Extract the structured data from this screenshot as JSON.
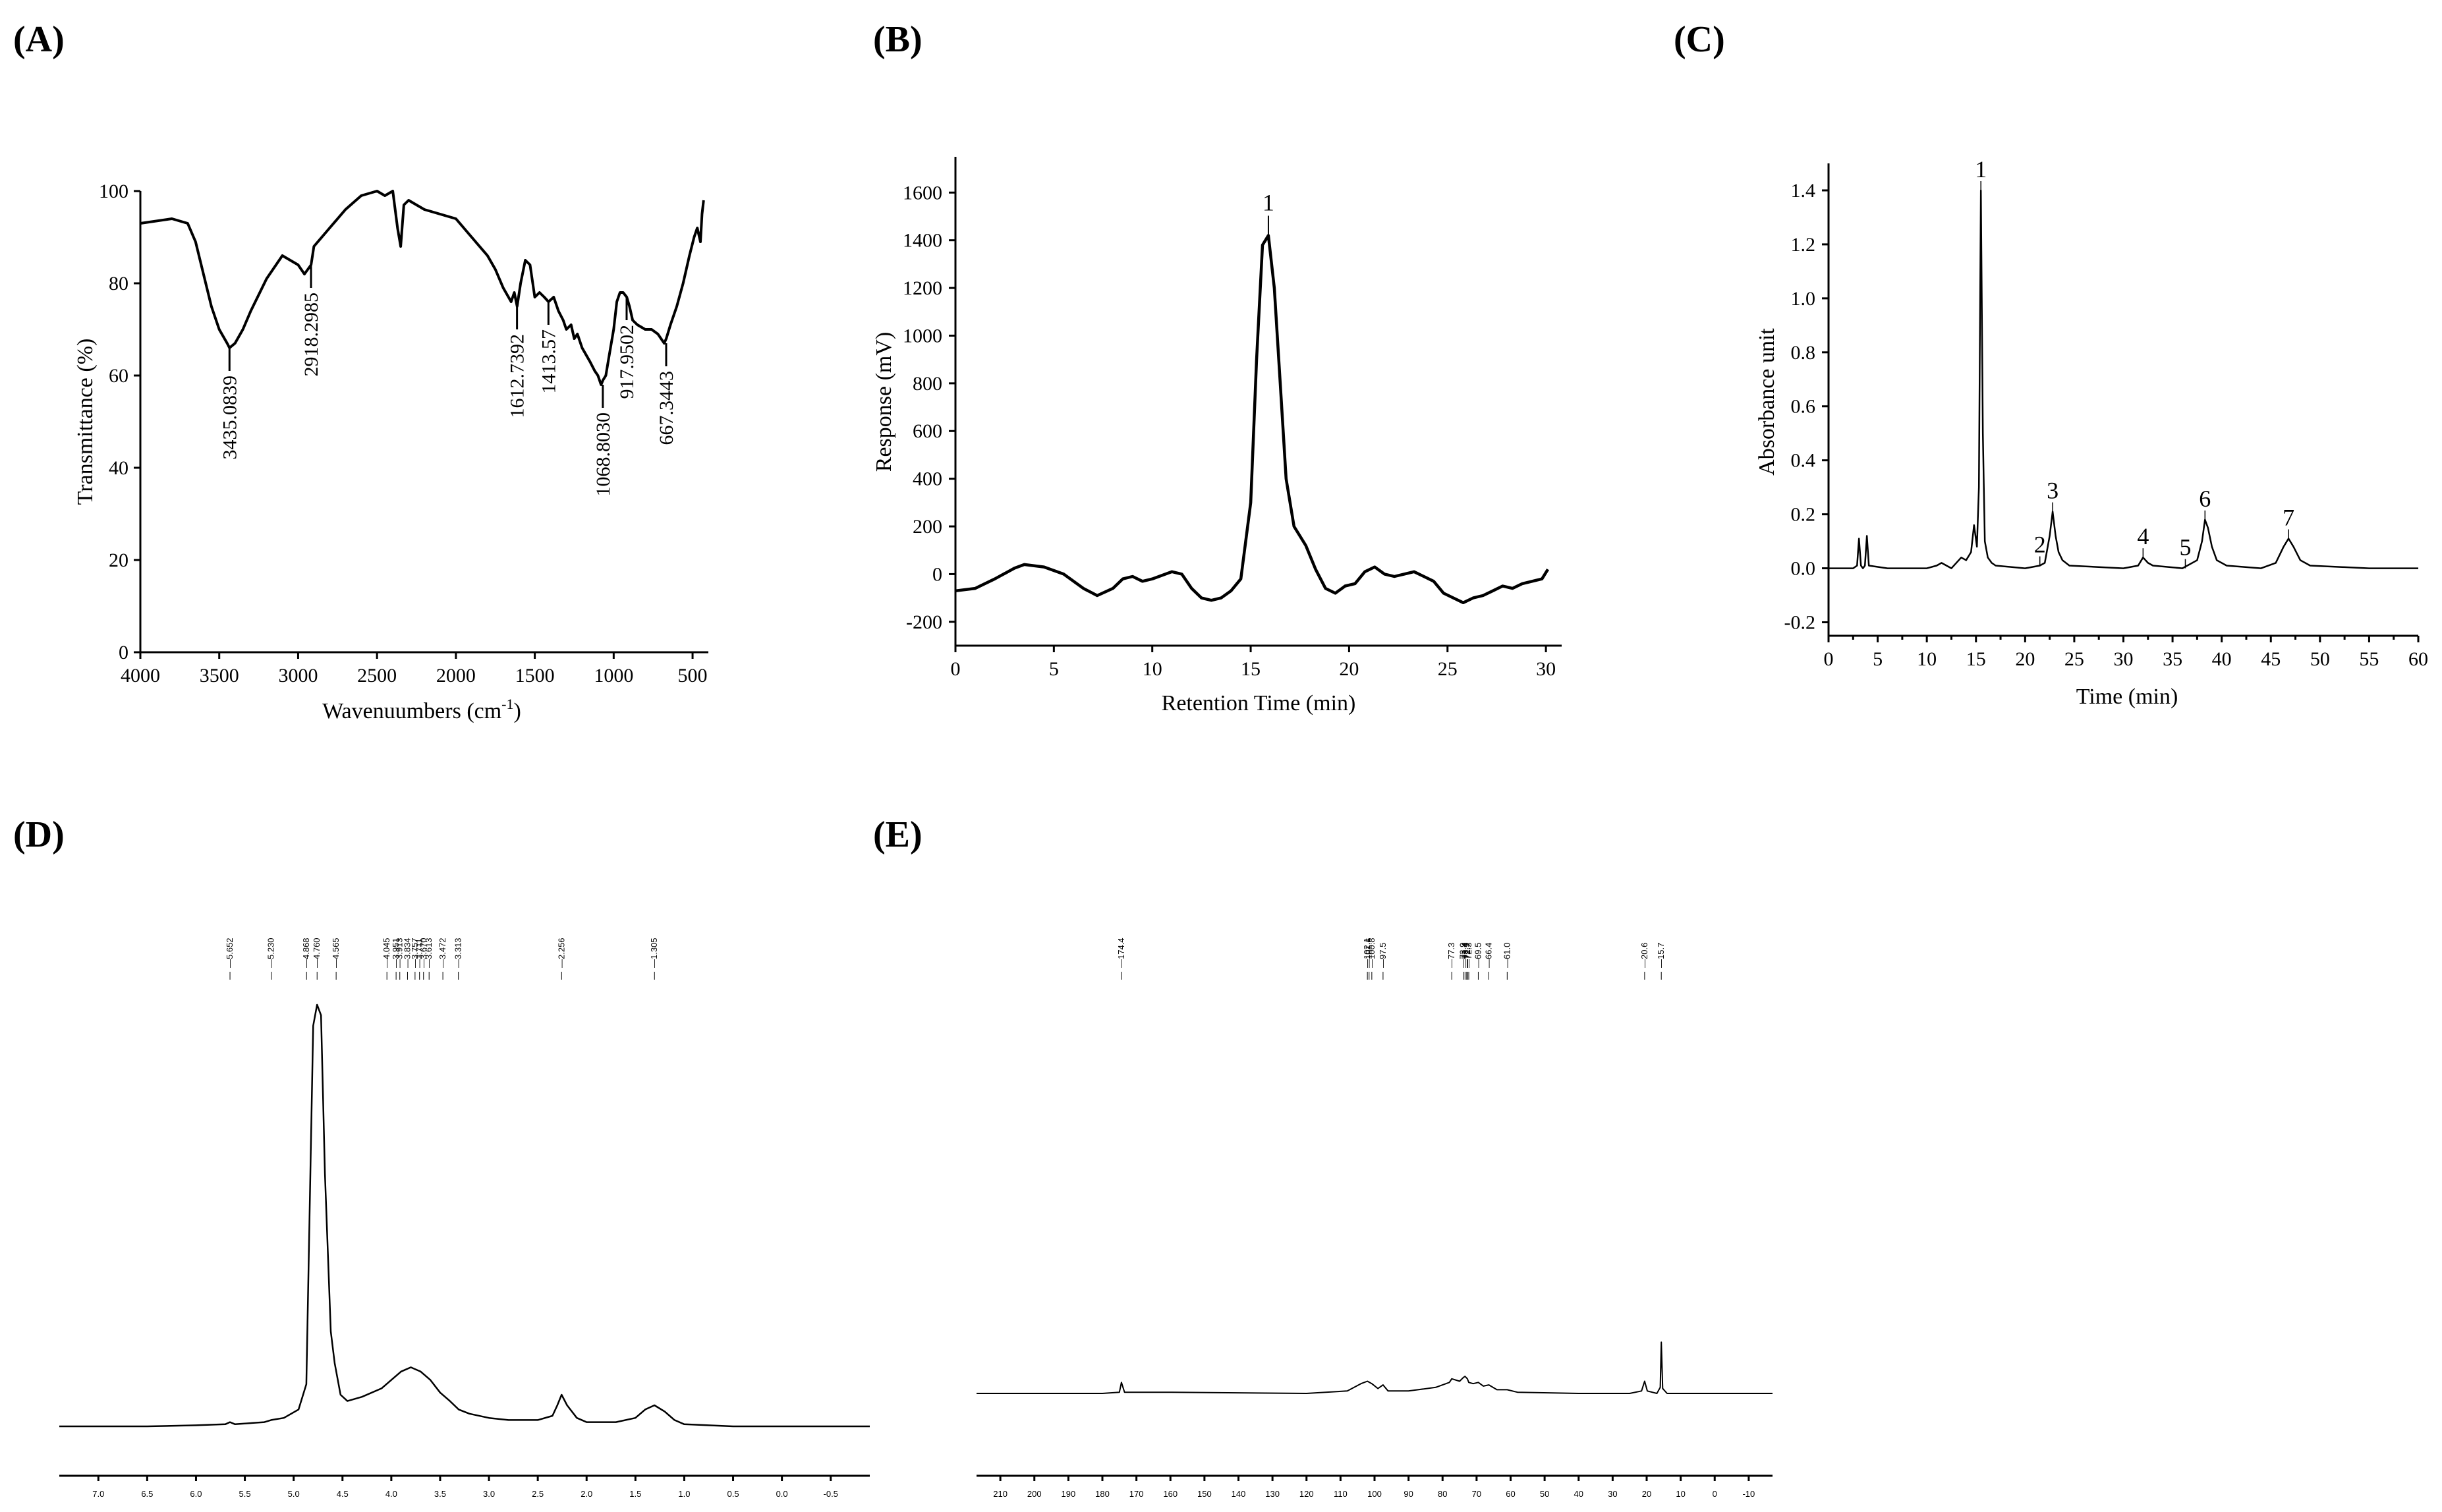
{
  "panels": {
    "A": {
      "label": "(A)"
    },
    "B": {
      "label": "(B)"
    },
    "C": {
      "label": "(C)"
    },
    "D": {
      "label": "(D)"
    },
    "E": {
      "label": "(E)"
    }
  },
  "chart_data": [
    {
      "id": "A",
      "type": "line",
      "xlabel": "Wavenuumbers (cm",
      "xlabel_sup": "-1",
      "xlabel_close": ")",
      "ylabel": "Transmittance (%)",
      "xlim": [
        4000,
        400
      ],
      "ylim": [
        0,
        100
      ],
      "xticks": [
        4000,
        3500,
        3000,
        2500,
        2000,
        1500,
        1000,
        500
      ],
      "yticks": [
        0,
        20,
        40,
        60,
        80,
        100
      ],
      "series": [
        {
          "x": [
            4000,
            3800,
            3700,
            3650,
            3600,
            3550,
            3500,
            3450,
            3435,
            3400,
            3350,
            3300,
            3200,
            3100,
            3000,
            2960,
            2918,
            2900,
            2800,
            2700,
            2600,
            2500,
            2450,
            2400,
            2370,
            2350,
            2330,
            2300,
            2200,
            2000,
            1900,
            1800,
            1750,
            1700,
            1650,
            1630,
            1612,
            1590,
            1560,
            1530,
            1500,
            1470,
            1440,
            1413,
            1380,
            1350,
            1320,
            1300,
            1270,
            1250,
            1230,
            1200,
            1150,
            1120,
            1100,
            1080,
            1068,
            1050,
            1030,
            1000,
            980,
            960,
            940,
            917,
            900,
            880,
            850,
            800,
            760,
            720,
            700,
            680,
            667,
            640,
            600,
            560,
            520,
            490,
            470,
            450,
            440,
            430
          ],
          "y": [
            93,
            94,
            93,
            89,
            82,
            75,
            70,
            67,
            66,
            67,
            70,
            74,
            81,
            86,
            84,
            82,
            84,
            88,
            92,
            96,
            99,
            100,
            99,
            100,
            92,
            88,
            97,
            98,
            96,
            94,
            90,
            86,
            83,
            79,
            76,
            78,
            75,
            80,
            85,
            84,
            77,
            78,
            77,
            76,
            77,
            74,
            72,
            70,
            71,
            68,
            69,
            66,
            63,
            61,
            60,
            58,
            59,
            60,
            64,
            70,
            76,
            78,
            78,
            77,
            75,
            72,
            71,
            70,
            70,
            69,
            68,
            67,
            68,
            71,
            75,
            80,
            86,
            90,
            92,
            89,
            95,
            98
          ]
        }
      ],
      "annotations": [
        {
          "x": 3435.0839,
          "y": 66,
          "text": "3435.0839"
        },
        {
          "x": 2918.2985,
          "y": 84,
          "text": "2918.2985"
        },
        {
          "x": 1612.7392,
          "y": 75,
          "text": "1612.7392"
        },
        {
          "x": 1413.57,
          "y": 76,
          "text": "1413.57"
        },
        {
          "x": 1068.803,
          "y": 58,
          "text": "1068.8030"
        },
        {
          "x": 917.9502,
          "y": 77,
          "text": "917.9502"
        },
        {
          "x": 667.3443,
          "y": 67,
          "text": "667.3443"
        }
      ]
    },
    {
      "id": "B",
      "type": "line",
      "xlabel": "Retention Time (min)",
      "ylabel": "Response (mV)",
      "xlim": [
        0,
        30.8
      ],
      "ylim": [
        -300,
        1750
      ],
      "xticks": [
        0,
        5,
        10,
        15,
        20,
        25,
        30
      ],
      "yticks": [
        -200,
        0,
        200,
        400,
        600,
        800,
        1000,
        1200,
        1400,
        1600
      ],
      "series": [
        {
          "x": [
            0,
            1,
            2,
            3,
            3.5,
            4.5,
            5.5,
            6.5,
            7.2,
            8,
            8.5,
            9,
            9.5,
            10,
            11,
            11.5,
            12,
            12.5,
            13,
            13.5,
            14,
            14.5,
            15,
            15.3,
            15.6,
            15.9,
            16.2,
            16.5,
            16.8,
            17.2,
            17.8,
            18.3,
            18.8,
            19.3,
            19.8,
            20.3,
            20.8,
            21.3,
            21.8,
            22.3,
            22.8,
            23.3,
            23.8,
            24.3,
            24.8,
            25.3,
            25.8,
            26.3,
            26.8,
            27.3,
            27.8,
            28.3,
            28.8,
            29.3,
            29.8,
            30.1
          ],
          "y": [
            -70,
            -60,
            -20,
            25,
            40,
            30,
            0,
            -60,
            -90,
            -60,
            -20,
            -10,
            -30,
            -20,
            10,
            0,
            -60,
            -100,
            -110,
            -100,
            -70,
            -20,
            300,
            900,
            1380,
            1420,
            1200,
            800,
            400,
            200,
            120,
            20,
            -60,
            -80,
            -50,
            -40,
            10,
            30,
            0,
            -10,
            0,
            10,
            -10,
            -30,
            -80,
            -100,
            -120,
            -100,
            -90,
            -70,
            -50,
            -60,
            -40,
            -30,
            -20,
            20
          ]
        }
      ],
      "annotations": [
        {
          "x": 15.9,
          "y": 1420,
          "text": "1"
        }
      ]
    },
    {
      "id": "C",
      "type": "line",
      "xlabel": "Time (min)",
      "ylabel": "Absorbance unit",
      "xlim": [
        0,
        60
      ],
      "ylim": [
        -0.25,
        1.5
      ],
      "xticks": [
        0,
        5,
        10,
        15,
        20,
        25,
        30,
        35,
        40,
        45,
        50,
        55,
        60
      ],
      "yticks": [
        -0.2,
        0.0,
        0.2,
        0.4,
        0.6,
        0.8,
        1.0,
        1.2,
        1.4
      ],
      "series": [
        {
          "x": [
            0,
            2.5,
            2.9,
            3.1,
            3.3,
            3.5,
            3.7,
            3.9,
            4.1,
            6,
            10,
            11,
            11.5,
            12,
            12.5,
            13,
            13.5,
            14,
            14.5,
            14.8,
            15.1,
            15.3,
            15.5,
            15.7,
            15.9,
            16.2,
            16.6,
            17,
            20,
            21.5,
            22,
            22.5,
            22.8,
            23.1,
            23.4,
            23.8,
            24.5,
            30,
            31.5,
            32,
            32.5,
            33,
            36,
            37.5,
            38,
            38.3,
            38.6,
            39,
            39.5,
            40.5,
            44,
            45.5,
            46.3,
            46.8,
            47.3,
            48,
            49,
            55,
            60
          ],
          "y": [
            0,
            0,
            0.01,
            0.11,
            0.01,
            0,
            0.01,
            0.12,
            0.01,
            0,
            0,
            0.01,
            0.02,
            0.01,
            0,
            0.02,
            0.04,
            0.03,
            0.06,
            0.16,
            0.08,
            0.3,
            1.4,
            0.5,
            0.1,
            0.04,
            0.02,
            0.01,
            0,
            0.01,
            0.02,
            0.12,
            0.21,
            0.12,
            0.06,
            0.03,
            0.01,
            0,
            0.01,
            0.04,
            0.02,
            0.01,
            0,
            0.03,
            0.1,
            0.18,
            0.15,
            0.08,
            0.03,
            0.01,
            0,
            0.02,
            0.08,
            0.11,
            0.08,
            0.03,
            0.01,
            0,
            0
          ]
        }
      ],
      "annotations": [
        {
          "x": 15.5,
          "y": 1.4,
          "text": "1"
        },
        {
          "x": 21.5,
          "y": 0.01,
          "text": "2"
        },
        {
          "x": 22.8,
          "y": 0.21,
          "text": "3"
        },
        {
          "x": 32.0,
          "y": 0.04,
          "text": "4"
        },
        {
          "x": 36.3,
          "y": 0.0,
          "text": "5"
        },
        {
          "x": 38.3,
          "y": 0.18,
          "text": "6"
        },
        {
          "x": 46.8,
          "y": 0.11,
          "text": "7"
        }
      ]
    },
    {
      "id": "D",
      "type": "line",
      "xlim": [
        7.4,
        -0.9
      ],
      "xticks": [
        7.0,
        6.5,
        6.0,
        5.5,
        5.0,
        4.5,
        4.0,
        3.5,
        3.0,
        2.5,
        2.0,
        1.5,
        1.0,
        0.5,
        0.0,
        -0.5
      ],
      "xtick_labels": [
        "7.0",
        "6.5",
        "6.0",
        "5.5",
        "5.0",
        "4.5",
        "4.0",
        "3.5",
        "3.0",
        "2.5",
        "2.0",
        "1.5",
        "1.0",
        "0.5",
        "0.0",
        "-0.5"
      ],
      "peak_labels": [
        "5.652",
        "5.230",
        "4.868",
        "4.760",
        "4.565",
        "4.045",
        "3.951",
        "3.913",
        "3.834",
        "3.757",
        "3.711",
        "3.670",
        "3.613",
        "3.472",
        "3.313",
        "2.256",
        "1.305"
      ],
      "series": [
        {
          "x": [
            7.4,
            6.5,
            6.0,
            5.7,
            5.652,
            5.6,
            5.3,
            5.23,
            5.1,
            4.95,
            4.87,
            4.8,
            4.76,
            4.72,
            4.68,
            4.62,
            4.58,
            4.52,
            4.45,
            4.3,
            4.1,
            4.0,
            3.9,
            3.8,
            3.7,
            3.6,
            3.5,
            3.4,
            3.31,
            3.2,
            3.0,
            2.8,
            2.5,
            2.35,
            2.3,
            2.256,
            2.2,
            2.1,
            2.0,
            1.9,
            1.7,
            1.5,
            1.4,
            1.305,
            1.2,
            1.1,
            1.0,
            0.5,
            0.0,
            -0.9
          ],
          "y": [
            0,
            0,
            0.005,
            0.01,
            0.02,
            0.01,
            0.02,
            0.03,
            0.04,
            0.08,
            0.2,
            1.9,
            2.0,
            1.95,
            1.2,
            0.45,
            0.3,
            0.15,
            0.12,
            0.14,
            0.18,
            0.22,
            0.26,
            0.28,
            0.26,
            0.22,
            0.16,
            0.12,
            0.08,
            0.06,
            0.04,
            0.03,
            0.03,
            0.05,
            0.1,
            0.15,
            0.1,
            0.04,
            0.02,
            0.02,
            0.02,
            0.04,
            0.08,
            0.1,
            0.07,
            0.03,
            0.01,
            0,
            0,
            0
          ]
        }
      ]
    },
    {
      "id": "E",
      "type": "line",
      "xlim": [
        217,
        -17
      ],
      "xticks": [
        210,
        200,
        190,
        180,
        170,
        160,
        150,
        140,
        130,
        120,
        110,
        100,
        90,
        80,
        70,
        60,
        50,
        40,
        30,
        20,
        10,
        0,
        -10
      ],
      "xtick_labels": [
        "210",
        "200",
        "190",
        "180",
        "170",
        "160",
        "150",
        "140",
        "130",
        "120",
        "110",
        "100",
        "90",
        "80",
        "70",
        "60",
        "50",
        "40",
        "30",
        "20",
        "10",
        "0",
        "-10"
      ],
      "peak_labels": [
        "174.4",
        "102.1",
        "101.6",
        "100.8",
        "97.5",
        "77.3",
        "73.9",
        "73.4",
        "72.9",
        "72.7",
        "72.3",
        "69.5",
        "66.4",
        "61.0",
        "20.6",
        "15.7"
      ],
      "series": [
        {
          "x": [
            217,
            180,
            175,
            174.4,
            173.5,
            160,
            120,
            108,
            104,
            102.1,
            100.8,
            99,
            97.5,
            96,
            90,
            82,
            78,
            77.3,
            75,
            73.9,
            73.4,
            72.7,
            72.3,
            71,
            69.5,
            68,
            66.4,
            64,
            61,
            58,
            40,
            25,
            21.5,
            20.6,
            19.8,
            17,
            16,
            15.7,
            15.3,
            14,
            0,
            -17
          ],
          "y": [
            0,
            0,
            0.01,
            0.09,
            0.01,
            0.01,
            0,
            0.02,
            0.08,
            0.1,
            0.08,
            0.04,
            0.07,
            0.02,
            0.02,
            0.05,
            0.09,
            0.12,
            0.1,
            0.13,
            0.14,
            0.12,
            0.09,
            0.08,
            0.09,
            0.06,
            0.07,
            0.03,
            0.03,
            0.01,
            0,
            0,
            0.02,
            0.1,
            0.02,
            0,
            0.05,
            0.42,
            0.04,
            0,
            0,
            0
          ]
        }
      ]
    }
  ]
}
